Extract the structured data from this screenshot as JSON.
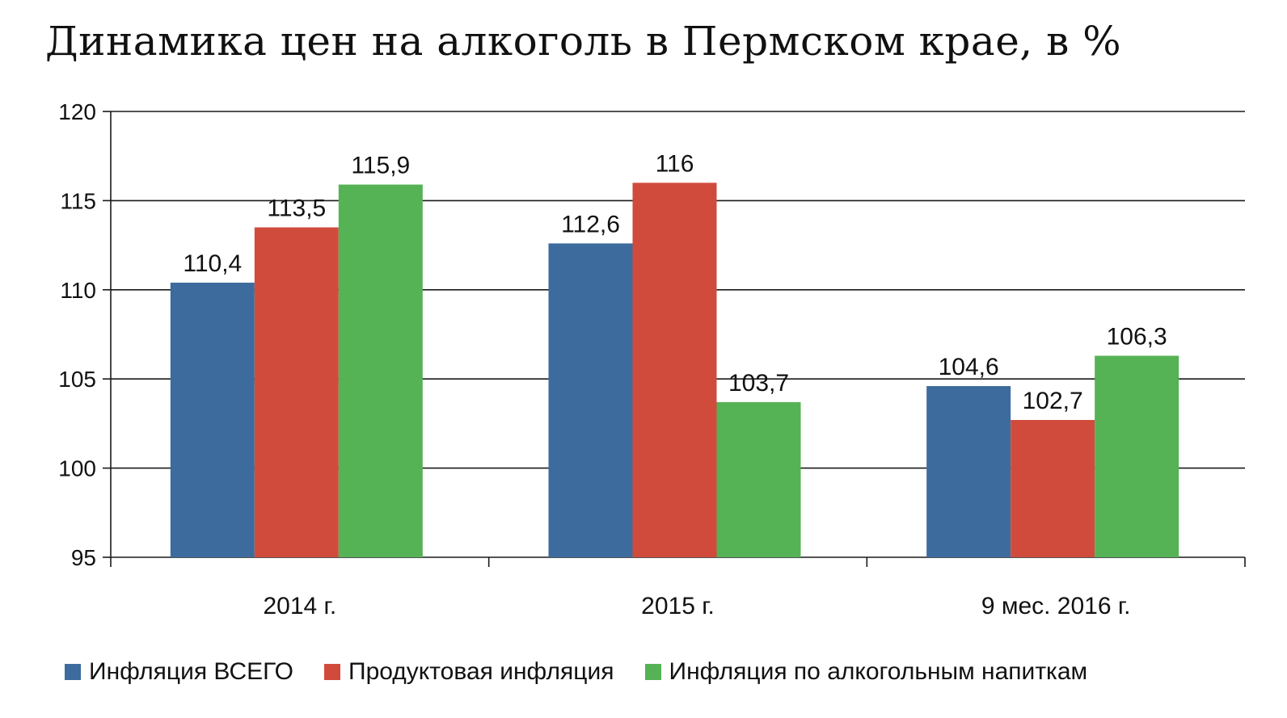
{
  "chart_data": {
    "type": "bar",
    "title": "Динамика цен на алкоголь в Пермском крае, в %",
    "xlabel": "",
    "ylabel": "",
    "categories": [
      "2014 г.",
      "2015 г.",
      "9 мес. 2016 г."
    ],
    "series": [
      {
        "name": "Инфляция ВСЕГО",
        "color": "#3d6b9e",
        "values": [
          110.4,
          112.6,
          104.6
        ],
        "labels": [
          "110,4",
          "112,6",
          "104,6"
        ]
      },
      {
        "name": "Продуктовая инфляция",
        "color": "#d14b3d",
        "values": [
          113.5,
          116,
          102.7
        ],
        "labels": [
          "113,5",
          "116",
          "102,7"
        ]
      },
      {
        "name": "Инфляция по алкогольным напиткам",
        "color": "#55b255",
        "values": [
          115.9,
          103.7,
          106.3
        ],
        "labels": [
          "115,9",
          "103,7",
          "106,3"
        ]
      }
    ],
    "ylim": [
      95,
      120
    ],
    "yticks": [
      95,
      100,
      105,
      110,
      115,
      120
    ],
    "grid": true,
    "legend_position": "bottom"
  }
}
